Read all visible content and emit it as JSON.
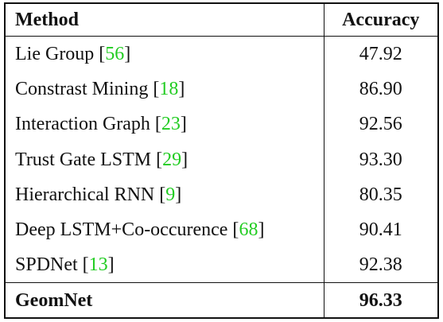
{
  "table": {
    "headers": {
      "method": "Method",
      "accuracy": "Accuracy"
    },
    "rows": [
      {
        "method": "Lie Group [",
        "ref": "56",
        "close": "]",
        "accuracy": "47.92"
      },
      {
        "method": "Constrast Mining [",
        "ref": "18",
        "close": "]",
        "accuracy": "86.90"
      },
      {
        "method": "Interaction Graph [",
        "ref": "23",
        "close": "]",
        "accuracy": "92.56"
      },
      {
        "method": "Trust Gate LSTM [",
        "ref": "29",
        "close": "]",
        "accuracy": "93.30"
      },
      {
        "method": "Hierarchical RNN [",
        "ref": "9",
        "close": "]",
        "accuracy": "80.35"
      },
      {
        "method": "Deep LSTM+Co-occurence [",
        "ref": "68",
        "close": "]",
        "accuracy": "90.41"
      },
      {
        "method": "SPDNet [",
        "ref": "13",
        "close": "]",
        "accuracy": "92.38"
      }
    ],
    "final": {
      "method": "GeomNet",
      "accuracy": "96.33"
    }
  },
  "colors": {
    "reference_link": "#22cc22",
    "rule": "#111111"
  }
}
